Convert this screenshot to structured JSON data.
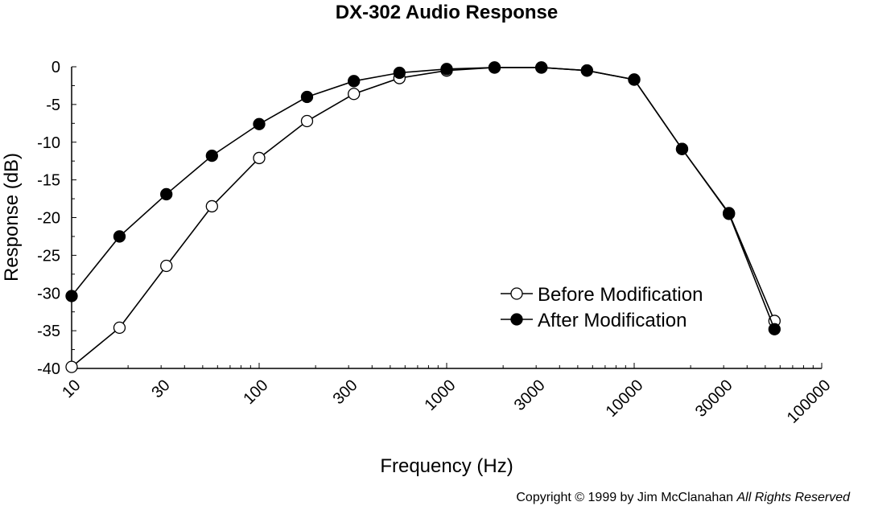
{
  "chart_data": {
    "type": "line",
    "title": "DX-302 Audio Response",
    "xlabel": "Frequency (Hz)",
    "ylabel": "Response (dB)",
    "xscale": "log",
    "xlim": [
      10,
      100000
    ],
    "ylim": [
      -40,
      0
    ],
    "x_ticks": [
      "10",
      "30",
      "100",
      "300",
      "1000",
      "3000",
      "10000",
      "30000",
      "100000"
    ],
    "y_ticks": [
      "0",
      "-5",
      "-10",
      "-15",
      "-20",
      "-25",
      "-30",
      "-35",
      "-40"
    ],
    "legend_position": "center-right",
    "grid": false,
    "series": [
      {
        "name": "Before Modification",
        "marker": "open-circle",
        "x": [
          10,
          18,
          32,
          56,
          100,
          180,
          320,
          560,
          1000,
          1800,
          3200,
          5600,
          10000,
          18000,
          32000,
          56000
        ],
        "y": [
          -39.8,
          -34.6,
          -26.4,
          -18.5,
          -12.1,
          -7.2,
          -3.6,
          -1.5,
          -0.5,
          -0.1,
          -0.1,
          -0.5,
          -1.7,
          -10.9,
          -19.4,
          -33.7
        ]
      },
      {
        "name": "After Modification",
        "marker": "filled-circle",
        "x": [
          10,
          18,
          32,
          56,
          100,
          180,
          320,
          560,
          1000,
          1800,
          3200,
          5600,
          10000,
          18000,
          32000,
          56000
        ],
        "y": [
          -30.4,
          -22.5,
          -16.9,
          -11.8,
          -7.6,
          -4.0,
          -1.9,
          -0.8,
          -0.3,
          -0.1,
          -0.1,
          -0.5,
          -1.7,
          -10.9,
          -19.5,
          -34.8
        ]
      }
    ]
  },
  "copyright": {
    "text": "Copyright © 1999 by Jim McClanahan ",
    "rights": "All Rights Reserved"
  }
}
